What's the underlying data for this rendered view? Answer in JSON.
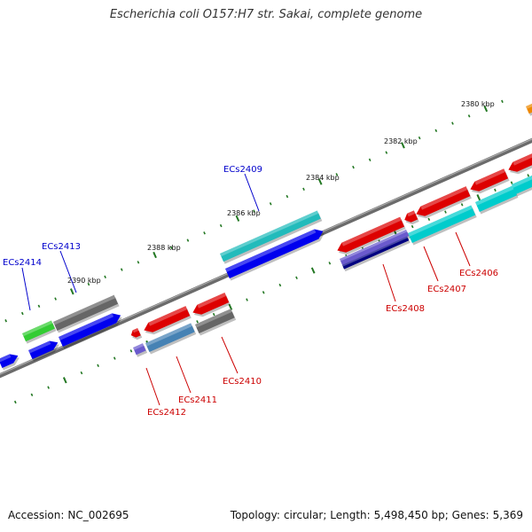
{
  "title": "Escherichia coli O157:H7 str. Sakai, complete genome",
  "footer": {
    "accession_label": "Accession:",
    "accession": "NC_002695",
    "topology_label": "Topology:",
    "topology": "circular;",
    "length_label": "Length:",
    "length": "5,498,450 bp;",
    "genes_label": "Genes:",
    "genes": "5,369"
  },
  "colors": {
    "forward": "#0000ee",
    "reverse": "#dd0000",
    "cyan": "#00cccc",
    "teal": "#22bbbb",
    "grey": "#666666",
    "green": "#33cc33",
    "steel": "#4682b4",
    "slate": "#6a5acd",
    "navy": "#000080",
    "orange": "#ee8800",
    "tick": "#227722"
  },
  "kbp_labels": [
    "2380 kbp",
    "2382 kbp",
    "2384 kbp",
    "2386 kbp",
    "2388 kbp",
    "2390 kbp"
  ],
  "gene_labels": {
    "forward": [
      "ECs2409",
      "ECs2413",
      "ECs2414"
    ],
    "reverse": [
      "ECs2406",
      "ECs2407",
      "ECs2408",
      "ECs2410",
      "ECs2411",
      "ECs2412"
    ]
  }
}
